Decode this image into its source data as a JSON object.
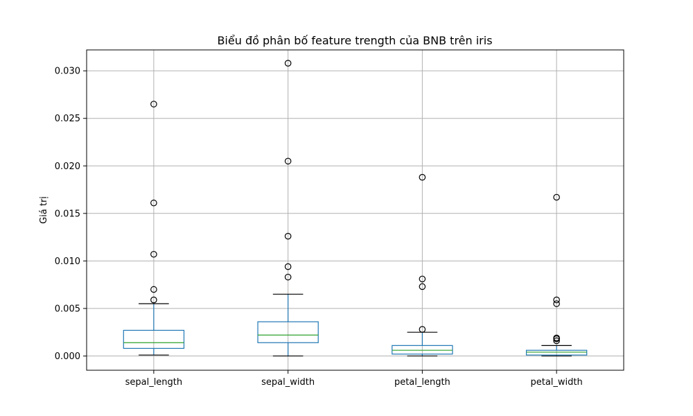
{
  "chart_data": {
    "type": "box",
    "title": "Biểu đồ phân bố feature trength của BNB trên iris",
    "xlabel": "",
    "ylabel": "Giá trị",
    "ylim": [
      -0.0015,
      0.0322
    ],
    "yticks": [
      0.0,
      0.005,
      0.01,
      0.015,
      0.02,
      0.025,
      0.03
    ],
    "ytick_labels": [
      "0.000",
      "0.005",
      "0.010",
      "0.015",
      "0.020",
      "0.025",
      "0.030"
    ],
    "grid": true,
    "categories": [
      "sepal_length",
      "sepal_width",
      "petal_length",
      "petal_width"
    ],
    "series": [
      {
        "category": "sepal_length",
        "whisker_low": 0.0001,
        "q1": 0.0008,
        "median": 0.0014,
        "q3": 0.0027,
        "whisker_high": 0.0055,
        "outliers": [
          0.0059,
          0.007,
          0.0107,
          0.0161,
          0.0265
        ]
      },
      {
        "category": "sepal_width",
        "whisker_low": 0.0,
        "q1": 0.0014,
        "median": 0.0022,
        "q3": 0.0036,
        "whisker_high": 0.0065,
        "outliers": [
          0.0083,
          0.0094,
          0.0126,
          0.0205,
          0.0308
        ]
      },
      {
        "category": "petal_length",
        "whisker_low": 0.0,
        "q1": 0.0002,
        "median": 0.0006,
        "q3": 0.0011,
        "whisker_high": 0.0025,
        "outliers": [
          0.0028,
          0.0073,
          0.0081,
          0.0188
        ]
      },
      {
        "category": "petal_width",
        "whisker_low": 0.0,
        "q1": 0.0001,
        "median": 0.0004,
        "q3": 0.0006,
        "whisker_high": 0.0011,
        "outliers": [
          0.0016,
          0.0018,
          0.0019,
          0.0055,
          0.0059,
          0.0167
        ]
      }
    ],
    "colors": {
      "box": "#1f77b4",
      "median": "#2ca02c",
      "whisker_cap": "#000000",
      "outlier": "#000000",
      "grid": "#b0b0b0"
    }
  }
}
